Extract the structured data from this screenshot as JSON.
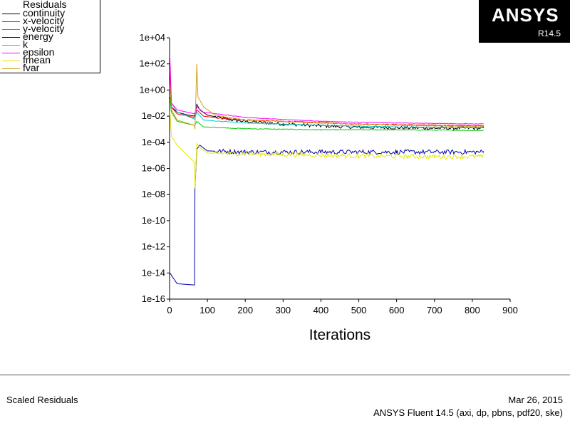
{
  "logo": {
    "brand": "ANSYS",
    "version": "R14.5"
  },
  "footer": {
    "left": "Scaled Residuals",
    "date": "Mar 26, 2015",
    "product": "ANSYS Fluent 14.5 (axi, dp, pbns, pdf20, ske)"
  },
  "chart_data": {
    "type": "line",
    "title": "Residuals",
    "xlabel": "Iterations",
    "ylabel": "",
    "yscale": "log",
    "xlim": [
      0,
      900
    ],
    "ylim": [
      1e-16,
      10000.0
    ],
    "x_ticks": [
      "0",
      "100",
      "200",
      "300",
      "400",
      "500",
      "600",
      "700",
      "800",
      "900"
    ],
    "y_ticks": [
      "1e-16",
      "1e-14",
      "1e-12",
      "1e-10",
      "1e-08",
      "1e-06",
      "1e-04",
      "1e-02",
      "1e+00",
      "1e+02",
      "1e+04"
    ],
    "legend_position": "top-left",
    "series": [
      {
        "name": "continuity",
        "color": "#000000",
        "points": [
          [
            1,
            0.3
          ],
          [
            5,
            0.05
          ],
          [
            20,
            0.02
          ],
          [
            50,
            0.012
          ],
          [
            66,
            0.01
          ],
          [
            72,
            0.08
          ],
          [
            80,
            0.03
          ],
          [
            100,
            0.012
          ],
          [
            150,
            0.006
          ],
          [
            200,
            0.004
          ],
          [
            300,
            0.0025
          ],
          [
            400,
            0.0018
          ],
          [
            500,
            0.0014
          ],
          [
            600,
            0.0013
          ],
          [
            700,
            0.0012
          ],
          [
            830,
            0.0012
          ]
        ],
        "noise": 0.25
      },
      {
        "name": "x-velocity",
        "color": "#ff0000",
        "points": [
          [
            1,
            30
          ],
          [
            5,
            0.05
          ],
          [
            20,
            0.015
          ],
          [
            66,
            0.008
          ],
          [
            72,
            0.03
          ],
          [
            90,
            0.01
          ],
          [
            150,
            0.006
          ],
          [
            300,
            0.004
          ],
          [
            500,
            0.0025
          ],
          [
            700,
            0.002
          ],
          [
            830,
            0.0018
          ]
        ],
        "noise": 0.08
      },
      {
        "name": "y-velocity",
        "color": "#00cc00",
        "points": [
          [
            1,
            0.2
          ],
          [
            5,
            0.02
          ],
          [
            20,
            0.004
          ],
          [
            66,
            0.002
          ],
          [
            72,
            0.004
          ],
          [
            90,
            0.0015
          ],
          [
            200,
            0.0011
          ],
          [
            400,
            0.0009
          ],
          [
            600,
            0.0009
          ],
          [
            830,
            0.0008
          ]
        ],
        "noise": 0.06
      },
      {
        "name": "energy",
        "color": "#0000aa",
        "points": [
          [
            1,
            1e-14
          ],
          [
            10,
            4e-15
          ],
          [
            20,
            1.5e-15
          ],
          [
            66,
            1.2e-15
          ],
          [
            67,
            3e-08
          ],
          [
            72,
            3e-05
          ],
          [
            80,
            6e-05
          ],
          [
            100,
            2.2e-05
          ],
          [
            200,
            1.8e-05
          ],
          [
            400,
            1.8e-05
          ],
          [
            600,
            1.8e-05
          ],
          [
            830,
            1.8e-05
          ]
        ],
        "noise": 0.35
      },
      {
        "name": "k",
        "color": "#00cccc",
        "points": [
          [
            1,
            1.5
          ],
          [
            5,
            0.1
          ],
          [
            20,
            0.02
          ],
          [
            66,
            0.006
          ],
          [
            72,
            0.02
          ],
          [
            90,
            0.005
          ],
          [
            200,
            0.003
          ],
          [
            400,
            0.002
          ],
          [
            600,
            0.0015
          ],
          [
            830,
            0.0013
          ]
        ],
        "noise": 0.05
      },
      {
        "name": "epsilon",
        "color": "#ff00ff",
        "points": [
          [
            1,
            300
          ],
          [
            5,
            0.1
          ],
          [
            20,
            0.03
          ],
          [
            66,
            0.015
          ],
          [
            72,
            0.05
          ],
          [
            90,
            0.02
          ],
          [
            200,
            0.008
          ],
          [
            400,
            0.004
          ],
          [
            600,
            0.003
          ],
          [
            830,
            0.0025
          ]
        ],
        "noise": 0.04
      },
      {
        "name": "fmean",
        "color": "#e6e600",
        "points": [
          [
            1,
            0.02
          ],
          [
            5,
            0.0003
          ],
          [
            20,
            6e-05
          ],
          [
            66,
            3e-06
          ],
          [
            67,
            3e-08
          ],
          [
            72,
            8e-05
          ],
          [
            80,
            4e-05
          ],
          [
            100,
            1.5e-05
          ],
          [
            300,
            1.2e-05
          ],
          [
            500,
            9e-06
          ],
          [
            700,
            8e-06
          ],
          [
            830,
            8e-06
          ]
        ],
        "noise": 0.35
      },
      {
        "name": "fvar",
        "color": "#d4a017",
        "points": [
          [
            1,
            2
          ],
          [
            5,
            0.03
          ],
          [
            20,
            0.005
          ],
          [
            66,
            0.002
          ],
          [
            67,
            0.001
          ],
          [
            72,
            100
          ],
          [
            75,
            0.3
          ],
          [
            90,
            0.05
          ],
          [
            120,
            0.012
          ],
          [
            200,
            0.005
          ],
          [
            400,
            0.003
          ],
          [
            600,
            0.002
          ],
          [
            830,
            0.0016
          ]
        ],
        "noise": 0.06
      }
    ]
  }
}
